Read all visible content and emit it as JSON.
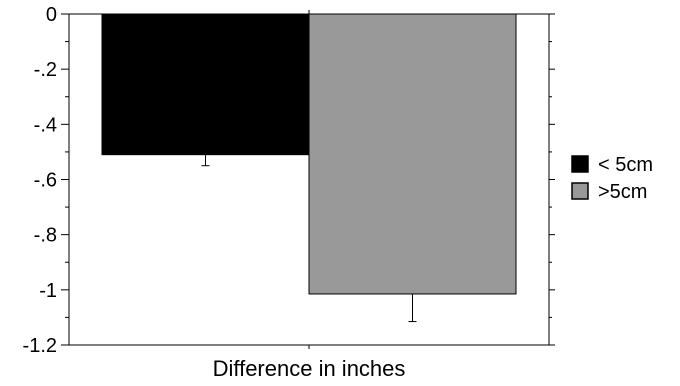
{
  "chart_data": {
    "type": "bar",
    "title": "",
    "xlabel": "Difference in inches",
    "ylabel": "",
    "ylim": [
      -1.2,
      0
    ],
    "yticks": [
      0,
      -0.2,
      -0.4,
      -0.6,
      -0.8,
      -1,
      -1.2
    ],
    "ytick_labels": [
      "0",
      "-.2",
      "-.4",
      "-.6",
      "-.8",
      "-1",
      "-1.2"
    ],
    "series": [
      {
        "name": "< 5cm",
        "value": -0.51,
        "error": 0.04,
        "color": "#000000"
      },
      {
        "name": ">5cm",
        "value": -1.015,
        "error": 0.1,
        "color": "#999999"
      }
    ],
    "grid": false,
    "legend_position": "right"
  }
}
